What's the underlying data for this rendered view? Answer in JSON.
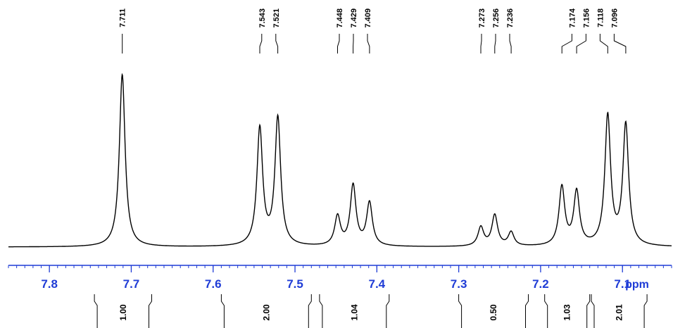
{
  "chart_data": {
    "type": "line",
    "title": "",
    "xlabel": "ppm",
    "ylabel": "",
    "xlim": [
      7.85,
      7.04
    ],
    "x_reversed": true,
    "axis_color": "#1f3cd6",
    "line_color": "#000000",
    "x_ticks": [
      {
        "value": 7.8,
        "label": "7.8"
      },
      {
        "value": 7.7,
        "label": "7.7"
      },
      {
        "value": 7.6,
        "label": "7.6"
      },
      {
        "value": 7.5,
        "label": "7.5"
      },
      {
        "value": 7.4,
        "label": "7.4"
      },
      {
        "value": 7.3,
        "label": "7.3"
      },
      {
        "value": 7.2,
        "label": "7.2"
      },
      {
        "value": 7.1,
        "label": "7.1"
      }
    ],
    "peaks": [
      {
        "ppm": 7.711,
        "label": "7.711",
        "height": 1.0
      },
      {
        "ppm": 7.543,
        "label": "7.543",
        "height": 0.68
      },
      {
        "ppm": 7.521,
        "label": "7.521",
        "height": 0.74
      },
      {
        "ppm": 7.448,
        "label": "7.448",
        "height": 0.17
      },
      {
        "ppm": 7.429,
        "label": "7.429",
        "height": 0.35
      },
      {
        "ppm": 7.409,
        "label": "7.409",
        "height": 0.25
      },
      {
        "ppm": 7.273,
        "label": "7.273",
        "height": 0.11
      },
      {
        "ppm": 7.256,
        "label": "7.256",
        "height": 0.18
      },
      {
        "ppm": 7.236,
        "label": "7.236",
        "height": 0.08
      },
      {
        "ppm": 7.174,
        "label": "7.174",
        "height": 0.34
      },
      {
        "ppm": 7.156,
        "label": "7.156",
        "height": 0.31
      },
      {
        "ppm": 7.118,
        "label": "7.118",
        "height": 0.75
      },
      {
        "ppm": 7.096,
        "label": "7.096",
        "height": 0.7
      }
    ],
    "integrals": [
      {
        "from": 7.745,
        "to": 7.675,
        "label": "1.00"
      },
      {
        "from": 7.59,
        "to": 7.48,
        "label": "2.00"
      },
      {
        "from": 7.47,
        "to": 7.385,
        "label": "1.04"
      },
      {
        "from": 7.3,
        "to": 7.215,
        "label": "0.50"
      },
      {
        "from": 7.195,
        "to": 7.14,
        "label": "1.03"
      },
      {
        "from": 7.138,
        "to": 7.07,
        "label": "2.01"
      }
    ]
  }
}
